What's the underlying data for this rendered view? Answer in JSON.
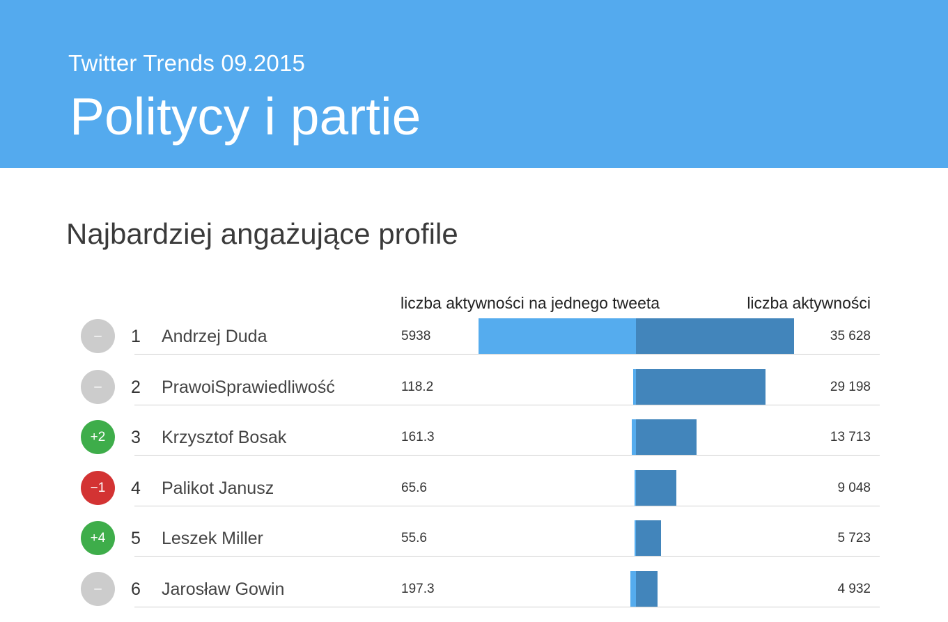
{
  "header": {
    "subtitle": "Twitter Trends 09.2015",
    "title": "Politycy i partie"
  },
  "section": {
    "title": "Najbardziej angażujące profile"
  },
  "chart_data": {
    "type": "bar",
    "columns": {
      "per_tweet_label": "liczba aktywności na jednego tweeta",
      "total_label": "liczba aktywności"
    },
    "rows": [
      {
        "change": "–",
        "change_type": "none",
        "rank": "1",
        "name": "Andrzej Duda",
        "per_tweet_text": "5938",
        "per_tweet": 5938,
        "total_text": "35 628",
        "total": 35628
      },
      {
        "change": "–",
        "change_type": "none",
        "rank": "2",
        "name": "PrawoiSprawiedliwość",
        "per_tweet_text": "118.2",
        "per_tweet": 118.2,
        "total_text": "29 198",
        "total": 29198
      },
      {
        "change": "+2",
        "change_type": "up",
        "rank": "3",
        "name": "Krzysztof Bosak",
        "per_tweet_text": "161.3",
        "per_tweet": 161.3,
        "total_text": "13 713",
        "total": 13713
      },
      {
        "change": "−1",
        "change_type": "down",
        "rank": "4",
        "name": "Palikot Janusz",
        "per_tweet_text": "65.6",
        "per_tweet": 65.6,
        "total_text": "9 048",
        "total": 9048
      },
      {
        "change": "+4",
        "change_type": "up",
        "rank": "5",
        "name": "Leszek Miller",
        "per_tweet_text": "55.6",
        "per_tweet": 55.6,
        "total_text": "5 723",
        "total": 5723
      },
      {
        "change": "–",
        "change_type": "none",
        "rank": "6",
        "name": "Jarosław Gowin",
        "per_tweet_text": "197.3",
        "per_tweet": 197.3,
        "total_text": "4 932",
        "total": 4932
      }
    ]
  },
  "colors": {
    "header_bg": "#54aaee",
    "per_tweet_bar": "#55acee",
    "total_bar": "#4285bb",
    "badge_none": "#cccccc",
    "badge_up": "#3ead4a",
    "badge_down": "#d33333"
  }
}
